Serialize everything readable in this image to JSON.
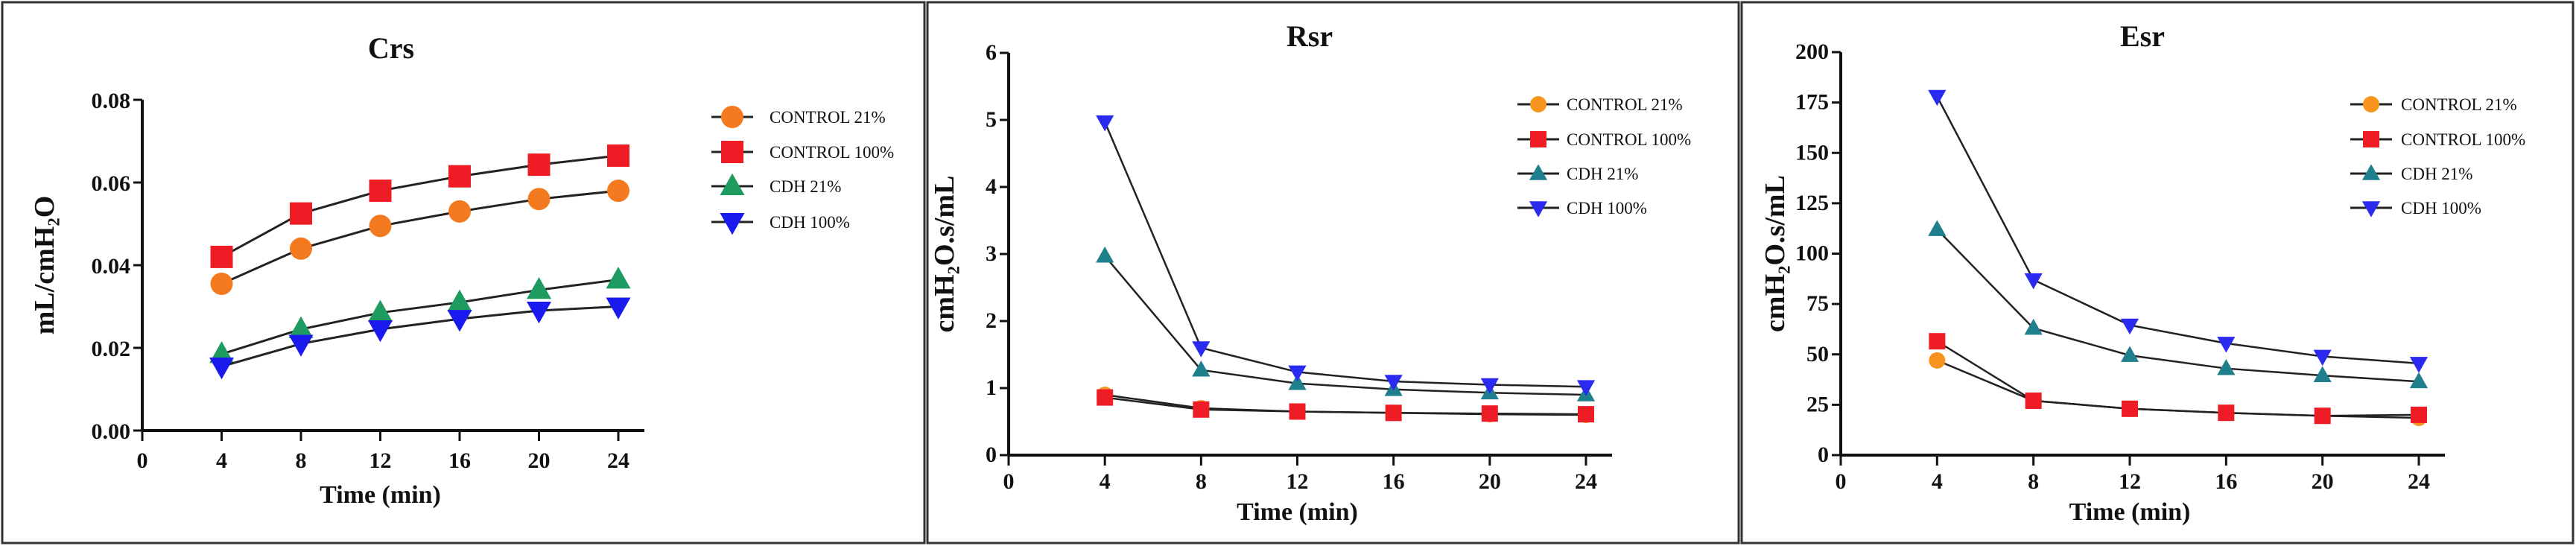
{
  "chart_data": [
    {
      "type": "line",
      "title": "Crs",
      "xlabel": "Time (min)",
      "ylabel": "mL/cmH₂O",
      "x": [
        4,
        8,
        12,
        16,
        20,
        24
      ],
      "xlim": [
        0,
        24
      ],
      "ylim": [
        0,
        0.08
      ],
      "xticks": [
        "0",
        "4",
        "8",
        "12",
        "16",
        "20",
        "24"
      ],
      "yticks": [
        "0.00",
        "0.02",
        "0.04",
        "0.06",
        "0.08"
      ],
      "grid": false,
      "legend_placement": "right",
      "series": [
        {
          "name": "CONTROL 21%",
          "marker": "circle",
          "color": "#f47a20",
          "values": [
            0.0355,
            0.044,
            0.0495,
            0.053,
            0.056,
            0.058
          ]
        },
        {
          "name": "CONTROL 100%",
          "marker": "square",
          "color": "#ee1c25",
          "values": [
            0.042,
            0.0525,
            0.058,
            0.0615,
            0.0643,
            0.0665
          ]
        },
        {
          "name": "CDH 21%",
          "marker": "triangle-up",
          "color": "#1e9b5e",
          "values": [
            0.0185,
            0.0245,
            0.0285,
            0.031,
            0.034,
            0.0365
          ]
        },
        {
          "name": "CDH 100%",
          "marker": "triangle-down",
          "color": "#1a1aee",
          "values": [
            0.0155,
            0.021,
            0.0245,
            0.027,
            0.029,
            0.03
          ]
        }
      ]
    },
    {
      "type": "line",
      "title": "Rsr",
      "xlabel": "Time (min)",
      "ylabel": "cmH₂O.s/mL",
      "x": [
        4,
        8,
        12,
        16,
        20,
        24
      ],
      "xlim": [
        0,
        24
      ],
      "ylim": [
        0,
        6
      ],
      "xticks": [
        "0",
        "4",
        "8",
        "12",
        "16",
        "20",
        "24"
      ],
      "yticks": [
        "0",
        "1",
        "2",
        "3",
        "4",
        "5",
        "6"
      ],
      "grid": false,
      "legend_placement": "right",
      "series": [
        {
          "name": "CONTROL 21%",
          "marker": "circle",
          "color": "#f7941d",
          "values": [
            0.9,
            0.7,
            0.65,
            0.63,
            0.61,
            0.6
          ]
        },
        {
          "name": "CONTROL 100%",
          "marker": "square",
          "color": "#ee1c25",
          "values": [
            0.86,
            0.68,
            0.65,
            0.63,
            0.62,
            0.61
          ]
        },
        {
          "name": "CDH 21%",
          "marker": "triangle-up",
          "color": "#1f7f8c",
          "values": [
            2.97,
            1.27,
            1.07,
            0.98,
            0.93,
            0.9
          ]
        },
        {
          "name": "CDH 100%",
          "marker": "triangle-down",
          "color": "#2a2af0",
          "values": [
            4.97,
            1.6,
            1.24,
            1.1,
            1.05,
            1.02
          ]
        }
      ]
    },
    {
      "type": "line",
      "title": "Esr",
      "xlabel": "Time (min)",
      "ylabel": "cmH₂O.s/mL",
      "x": [
        4,
        8,
        12,
        16,
        20,
        24
      ],
      "xlim": [
        0,
        24
      ],
      "ylim": [
        0,
        200
      ],
      "xticks": [
        "0",
        "4",
        "8",
        "12",
        "16",
        "20",
        "24"
      ],
      "yticks": [
        "0",
        "25",
        "50",
        "75",
        "100",
        "125",
        "150",
        "175",
        "200"
      ],
      "grid": false,
      "legend_placement": "right",
      "series": [
        {
          "name": "CONTROL 21%",
          "marker": "circle",
          "color": "#f7941d",
          "values": [
            47,
            27,
            23,
            21,
            19.5,
            18.5
          ]
        },
        {
          "name": "CONTROL 100%",
          "marker": "square",
          "color": "#ee1c25",
          "values": [
            56.5,
            27,
            23,
            21,
            19.5,
            20
          ]
        },
        {
          "name": "CDH 21%",
          "marker": "triangle-up",
          "color": "#1f7f8c",
          "values": [
            112,
            63,
            49.5,
            43,
            39.5,
            36.5
          ]
        },
        {
          "name": "CDH 100%",
          "marker": "triangle-down",
          "color": "#2a2af0",
          "values": [
            178,
            87,
            64.5,
            55.5,
            49,
            45.5
          ]
        }
      ]
    }
  ]
}
